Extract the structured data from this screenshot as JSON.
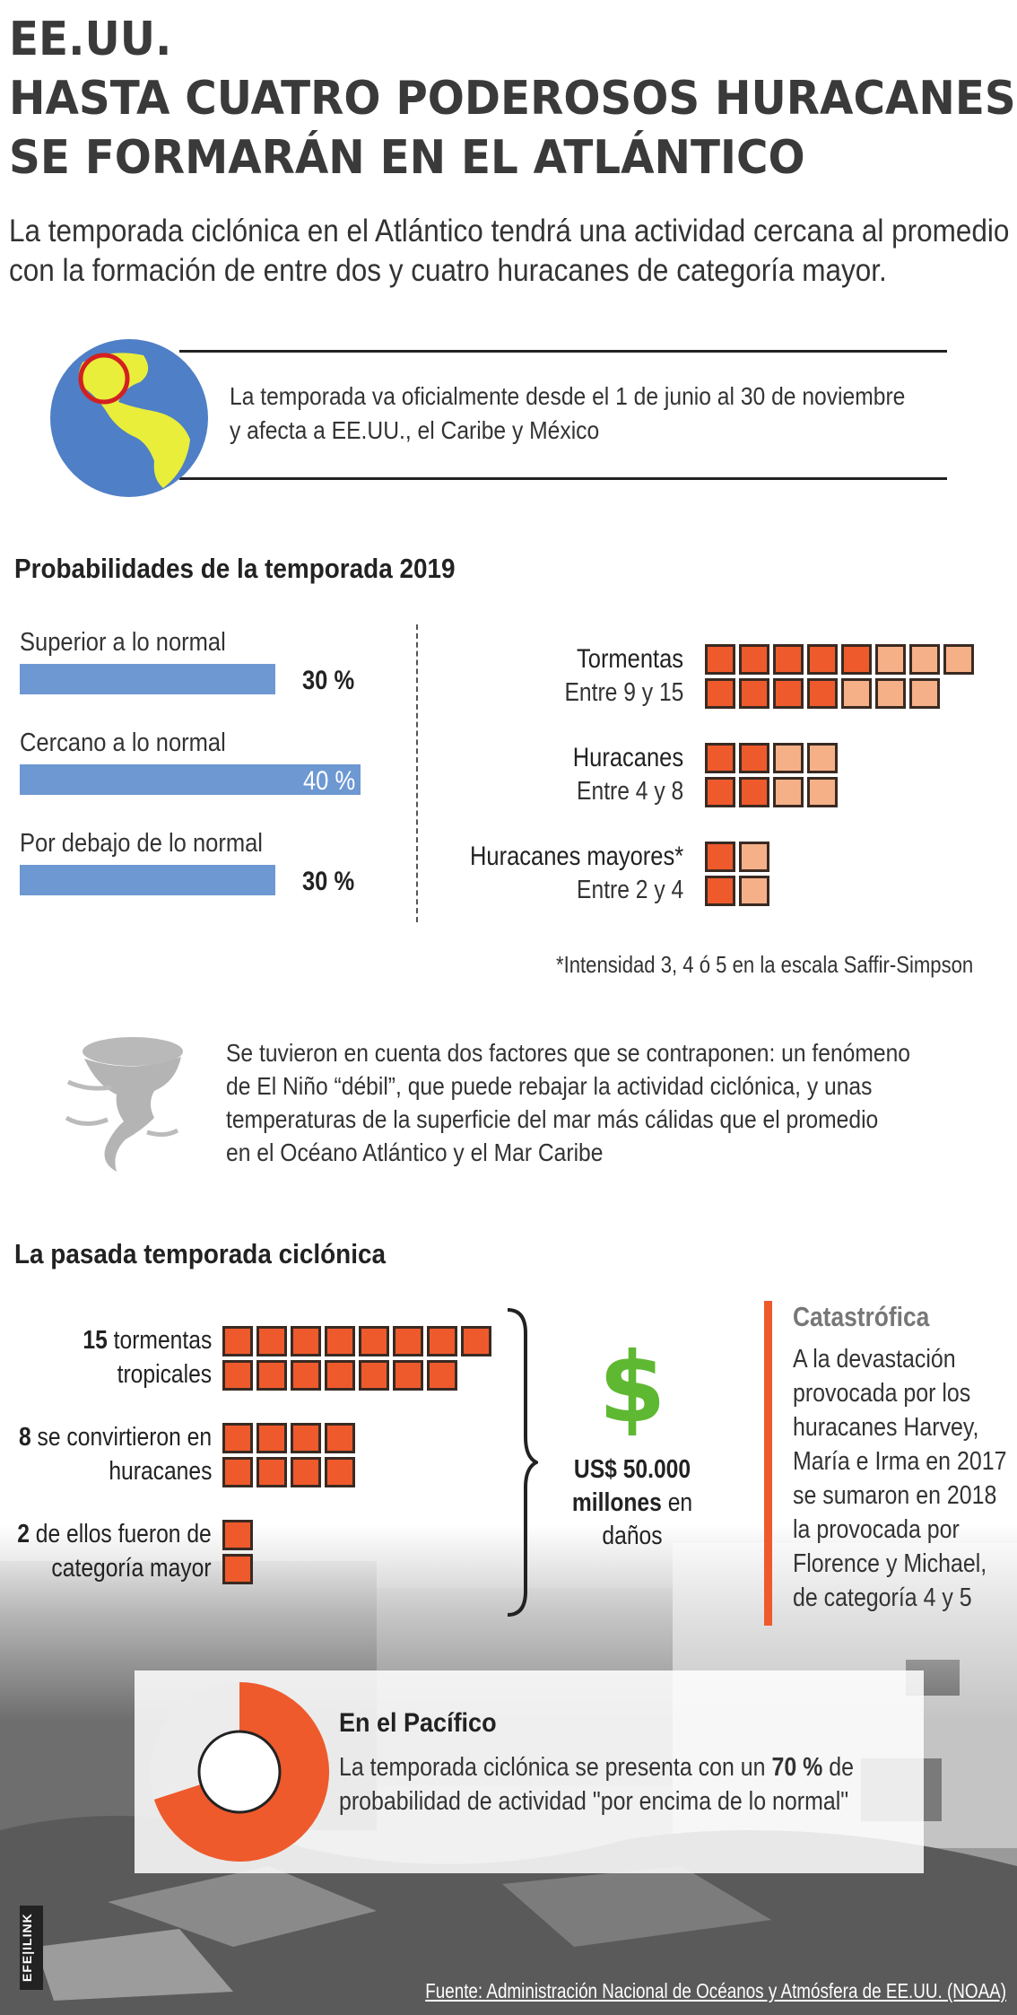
{
  "header": {
    "kicker": "EE.UU.",
    "title_line1": "HASTA CUATRO PODEROSOS HURACANES",
    "title_line2": "SE FORMARÁN EN EL ATLÁNTICO",
    "subtitle_line1": "La temporada ciclónica en el Atlántico tendrá una actividad cercana al promedio",
    "subtitle_line2": "con la formación de entre dos y cuatro huracanes de categoría mayor."
  },
  "season_info": {
    "line1": "La temporada va oficialmente desde el 1 de junio al 30 de noviembre",
    "line2": "y afecta a EE.UU., el Caribe y México"
  },
  "probabilities": {
    "title": "Probabilidades de la temporada 2019",
    "items": [
      {
        "label": "Superior a lo normal",
        "percent": 30,
        "value_label": "30 %"
      },
      {
        "label": "Cercano a lo normal",
        "percent": 40,
        "value_label": "40 %"
      },
      {
        "label": "Por debajo de lo normal",
        "percent": 30,
        "value_label": "30 %"
      }
    ],
    "forecast": [
      {
        "name": "Tormentas",
        "range": "Entre 9 y 15",
        "min": 9,
        "max": 15
      },
      {
        "name": "Huracanes",
        "range": "Entre 4 y 8",
        "min": 4,
        "max": 8
      },
      {
        "name": "Huracanes mayores*",
        "range": "Entre 2 y 4",
        "min": 2,
        "max": 4
      }
    ],
    "footnote": "*Intensidad 3, 4 ó 5 en la escala Saffir-Simpson"
  },
  "factors": {
    "line1": "Se tuvieron en cuenta dos factores que se contraponen: un fenómeno",
    "line2": "de El Niño “débil”, que puede rebajar la actividad ciclónica, y unas",
    "line3": "temperaturas de la superficie del mar más cálidas que el promedio",
    "line4": "en el Océano Atlántico y el Mar Caribe"
  },
  "past_season": {
    "title": "La pasada temporada ciclónica",
    "storms": {
      "count": 15,
      "count_label": "15",
      "line1": " tormentas",
      "line2": "tropicales"
    },
    "hurricanes": {
      "count": 8,
      "count_label": "8",
      "line1": " se convirtieron en",
      "line2": "huracanes"
    },
    "major": {
      "count": 2,
      "count_label": "2",
      "line1": " de ellos fueron de",
      "line2": "categoría mayor"
    },
    "damage_symbol": "$",
    "damage_amount": "US$ 50.000",
    "damage_unit": "millones",
    "damage_rest1": " en",
    "damage_rest2": "daños"
  },
  "catastrophic": {
    "title": "Catastrófica",
    "lines": [
      "A la devastación",
      "provocada por los",
      "huracanes Harvey,",
      "María e Irma en 2017",
      "se sumaron en 2018",
      "la provocada por",
      "Florence y Michael,",
      "de categoría 4 y 5"
    ]
  },
  "pacific": {
    "title": "En el Pacífico",
    "line1_pre": "La temporada ciclónica se presenta con un ",
    "line1_bold": "70 %",
    "line1_post": " de",
    "line2": "probabilidad de actividad \"por encima de lo normal\"",
    "probability": 0.7
  },
  "credit": {
    "agency": "EFE",
    "brand": "EFE|ILINK"
  },
  "source": "Fuente: Administración Nacional de Océanos y Atmósfera de EE.UU. (NOAA)",
  "colors": {
    "bar_blue": "#6d98d2",
    "square_dark": "#ee5a2c",
    "square_light": "#f6b088",
    "accent_orange": "#ee5a2c",
    "dollar_green": "#5fb832"
  }
}
